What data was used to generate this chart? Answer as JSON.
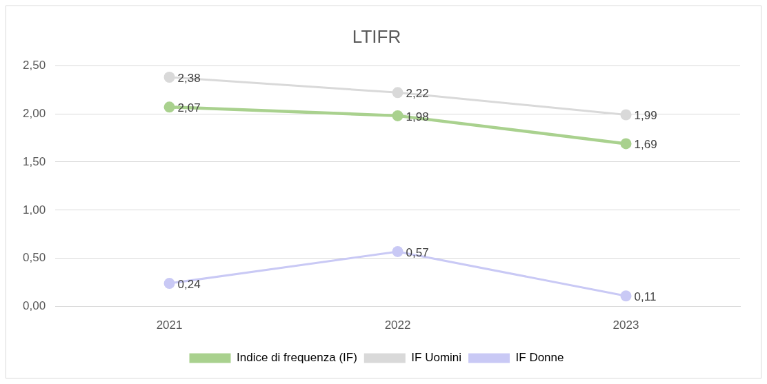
{
  "chart_data": {
    "type": "line",
    "title": "LTIFR",
    "categories": [
      "2021",
      "2022",
      "2023"
    ],
    "series": [
      {
        "name": "Indice di frequenza (IF)",
        "color": "#a9d18e",
        "values": [
          2.07,
          1.98,
          1.69
        ],
        "value_labels": [
          "2,07",
          "1,98",
          "1,69"
        ]
      },
      {
        "name": "IF Uomini",
        "color": "#d9d9d9",
        "values": [
          2.38,
          2.22,
          1.99
        ],
        "value_labels": [
          "2,38",
          "2,22",
          "1,99"
        ]
      },
      {
        "name": "IF Donne",
        "color": "#c9c9f5",
        "values": [
          0.24,
          0.57,
          0.11
        ],
        "value_labels": [
          "0,24",
          "0,57",
          "0,11"
        ]
      }
    ],
    "ylim": [
      0,
      2.5
    ],
    "yticks": [
      {
        "value": 0,
        "label": "0,00"
      },
      {
        "value": 0.5,
        "label": "0,50"
      },
      {
        "value": 1,
        "label": "1,00"
      },
      {
        "value": 1.5,
        "label": "1,50"
      },
      {
        "value": 2,
        "label": "2,00"
      },
      {
        "value": 2.5,
        "label": "2,50"
      }
    ],
    "grid": "y",
    "legend": "bottom",
    "marker": "circle",
    "line_style": "solid"
  }
}
